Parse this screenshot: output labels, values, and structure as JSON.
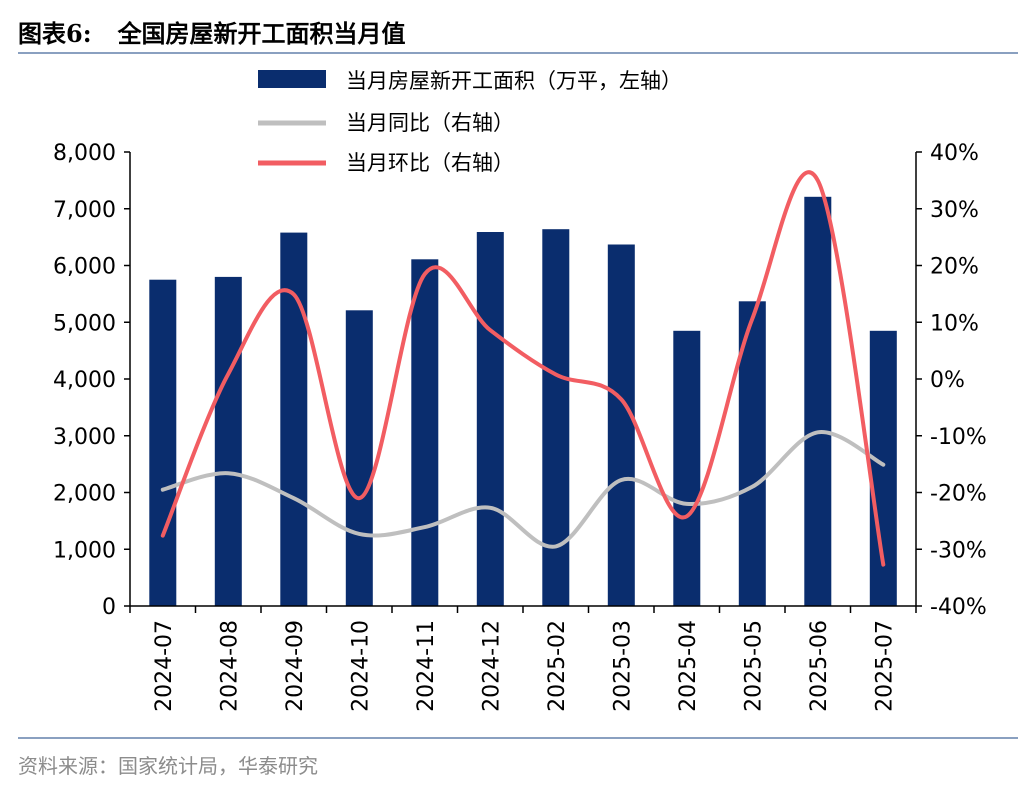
{
  "header": {
    "figure_label": "图表6:",
    "title": "全国房屋新开工面积当月值"
  },
  "footer": {
    "source": "资料来源：国家统计局，华泰研究"
  },
  "colors": {
    "bar": "#0a2d6e",
    "yoy_line": "#bfbfbf",
    "mom_line": "#f25d62",
    "rule": "#8aa0c0"
  },
  "chart_data": {
    "type": "bar",
    "title": "",
    "xlabel": "",
    "ylabel": "",
    "categories": [
      "2024-07",
      "2024-08",
      "2024-09",
      "2024-10",
      "2024-11",
      "2024-12",
      "2025-02",
      "2025-03",
      "2025-04",
      "2025-05",
      "2025-06",
      "2025-07"
    ],
    "left_axis": {
      "ylim": [
        0,
        8000
      ],
      "ticks": [
        "0",
        "1,000",
        "2,000",
        "3,000",
        "4,000",
        "5,000",
        "6,000",
        "7,000",
        "8,000"
      ]
    },
    "right_axis": {
      "ylim": [
        -40,
        40
      ],
      "ticks": [
        "-40%",
        "-30%",
        "-20%",
        "-10%",
        "0%",
        "10%",
        "20%",
        "30%",
        "40%"
      ]
    },
    "legend_position": "top-center",
    "grid": false,
    "series": [
      {
        "name": "当月房屋新开工面积（万平，左轴）",
        "type": "bar",
        "axis": "left",
        "values": [
          5750,
          5800,
          6580,
          5210,
          6110,
          6590,
          6640,
          6370,
          4850,
          5370,
          7210,
          4850
        ]
      },
      {
        "name": "当月同比（右轴）",
        "type": "line",
        "axis": "right",
        "values": [
          -19.5,
          -16.6,
          -21.0,
          -27.3,
          -26.1,
          -22.7,
          -29.5,
          -17.8,
          -22.0,
          -19.0,
          -9.4,
          -15.1
        ]
      },
      {
        "name": "当月环比（右轴）",
        "type": "line",
        "axis": "right",
        "values": [
          -27.6,
          0.9,
          14.9,
          -21.0,
          18.5,
          8.6,
          0.8,
          -3.6,
          -24.2,
          10.6,
          35.0,
          -32.7
        ]
      }
    ]
  }
}
